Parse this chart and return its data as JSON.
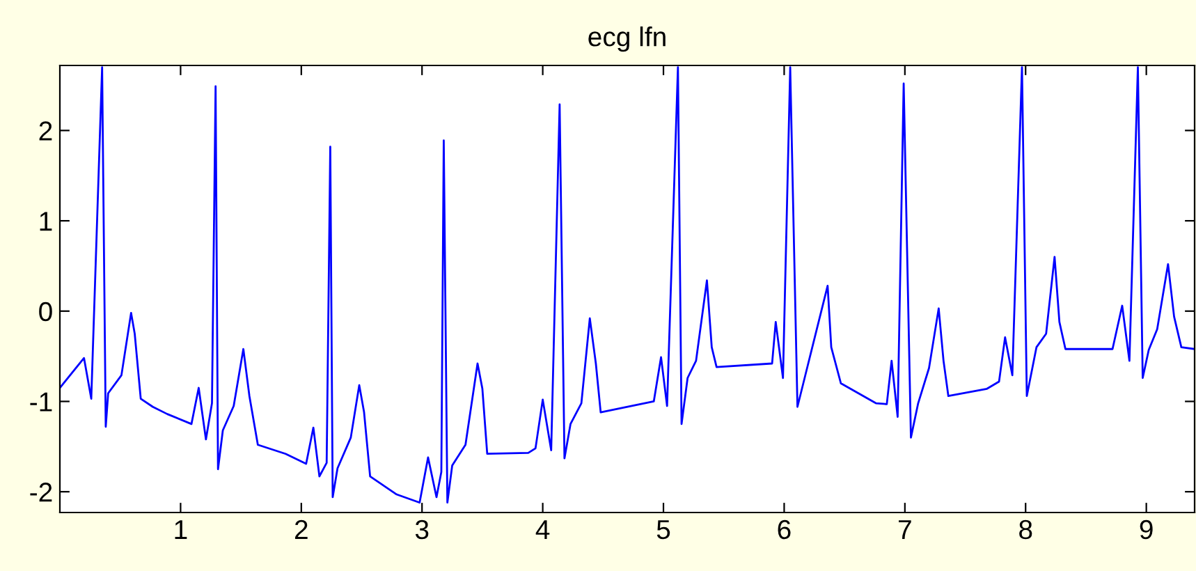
{
  "chart_data": {
    "type": "line",
    "title": "ecg lfn",
    "x": [
      0.0,
      0.2,
      0.26,
      0.35,
      0.38,
      0.4,
      0.51,
      0.59,
      0.62,
      0.67,
      0.77,
      0.89,
      1.09,
      1.15,
      1.21,
      1.26,
      1.29,
      1.31,
      1.35,
      1.44,
      1.52,
      1.57,
      1.64,
      1.87,
      2.04,
      2.1,
      2.15,
      2.21,
      2.24,
      2.26,
      2.3,
      2.41,
      2.48,
      2.52,
      2.57,
      2.79,
      2.98,
      3.05,
      3.12,
      3.16,
      3.18,
      3.21,
      3.25,
      3.36,
      3.46,
      3.5,
      3.54,
      3.88,
      3.94,
      4.0,
      4.07,
      4.14,
      4.18,
      4.23,
      4.32,
      4.39,
      4.44,
      4.48,
      4.92,
      4.98,
      5.03,
      5.12,
      5.15,
      5.2,
      5.27,
      5.36,
      5.4,
      5.44,
      5.9,
      5.93,
      5.99,
      6.05,
      6.11,
      6.19,
      6.36,
      6.39,
      6.47,
      6.76,
      6.85,
      6.89,
      6.94,
      6.99,
      7.05,
      7.11,
      7.2,
      7.28,
      7.32,
      7.36,
      7.68,
      7.78,
      7.83,
      7.89,
      7.97,
      8.01,
      8.09,
      8.17,
      8.24,
      8.28,
      8.33,
      8.72,
      8.8,
      8.86,
      8.93,
      8.97,
      9.02,
      9.09,
      9.18,
      9.23,
      9.29,
      9.4
    ],
    "series": [
      {
        "color": "#0000ff",
        "values": [
          -0.85,
          -0.52,
          -0.97,
          2.7,
          -1.28,
          -0.91,
          -0.71,
          -0.02,
          -0.25,
          -0.97,
          -1.06,
          -1.14,
          -1.25,
          -0.85,
          -1.42,
          -1.02,
          2.49,
          -1.75,
          -1.32,
          -1.05,
          -0.42,
          -0.94,
          -1.48,
          -1.58,
          -1.69,
          -1.29,
          -1.83,
          -1.68,
          1.82,
          -2.06,
          -1.74,
          -1.4,
          -0.82,
          -1.12,
          -1.83,
          -2.03,
          -2.12,
          -1.62,
          -2.06,
          -1.78,
          1.89,
          -2.12,
          -1.71,
          -1.48,
          -0.58,
          -0.86,
          -1.58,
          -1.57,
          -1.52,
          -0.98,
          -1.54,
          2.29,
          -1.63,
          -1.25,
          -1.02,
          -0.08,
          -0.58,
          -1.12,
          -1.0,
          -0.51,
          -1.05,
          2.7,
          -1.25,
          -0.74,
          -0.55,
          0.34,
          -0.4,
          -0.62,
          -0.58,
          -0.12,
          -0.74,
          2.7,
          -1.06,
          -0.63,
          0.28,
          -0.4,
          -0.8,
          -1.02,
          -1.03,
          -0.55,
          -1.17,
          2.52,
          -1.4,
          -1.02,
          -0.63,
          0.03,
          -0.55,
          -0.94,
          -0.86,
          -0.78,
          -0.29,
          -0.71,
          2.7,
          -0.94,
          -0.4,
          -0.25,
          0.6,
          -0.12,
          -0.42,
          -0.42,
          0.06,
          -0.55,
          2.7,
          -0.74,
          -0.43,
          -0.2,
          0.52,
          -0.06,
          -0.4,
          -0.42
        ]
      }
    ],
    "xlim": [
      0,
      9.4
    ],
    "xticks": [
      1,
      2,
      3,
      4,
      5,
      6,
      7,
      8,
      9
    ],
    "ylim": [
      -2.23,
      2.72
    ],
    "yticks": [
      {
        "value": -2,
        "label": "-2"
      },
      {
        "value": -1,
        "label": "-1"
      },
      0,
      1,
      2
    ],
    "grid": false,
    "legend": false
  }
}
